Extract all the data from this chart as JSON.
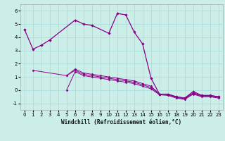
{
  "xlabel": "Windchill (Refroidissement éolien,°C)",
  "background_color": "#cceee8",
  "line_color": "#880088",
  "grid_color": "#aadddd",
  "series1": [
    [
      0,
      4.6
    ],
    [
      1,
      3.1
    ],
    [
      2,
      3.4
    ],
    [
      3,
      3.8
    ],
    [
      6,
      5.3
    ],
    [
      7,
      5.0
    ],
    [
      8,
      4.9
    ],
    [
      10,
      4.3
    ],
    [
      11,
      5.8
    ],
    [
      12,
      5.7
    ],
    [
      13,
      4.4
    ],
    [
      14,
      3.5
    ],
    [
      15,
      0.9
    ],
    [
      16,
      -0.3
    ],
    [
      17,
      -0.3
    ],
    [
      18,
      -0.5
    ],
    [
      19,
      -0.6
    ],
    [
      20,
      -0.1
    ],
    [
      21,
      -0.4
    ],
    [
      22,
      -0.4
    ],
    [
      23,
      -0.5
    ]
  ],
  "series2": [
    [
      1,
      1.5
    ],
    [
      5,
      1.1
    ],
    [
      6,
      1.6
    ],
    [
      7,
      1.3
    ],
    [
      8,
      1.2
    ],
    [
      9,
      1.1
    ],
    [
      10,
      1.0
    ],
    [
      11,
      0.9
    ],
    [
      12,
      0.8
    ],
    [
      13,
      0.7
    ],
    [
      14,
      0.5
    ],
    [
      15,
      0.3
    ],
    [
      16,
      -0.3
    ],
    [
      17,
      -0.3
    ],
    [
      18,
      -0.5
    ],
    [
      19,
      -0.6
    ],
    [
      20,
      -0.2
    ],
    [
      21,
      -0.4
    ],
    [
      22,
      -0.4
    ],
    [
      23,
      -0.5
    ]
  ],
  "series3": [
    [
      5,
      1.1
    ],
    [
      6,
      1.5
    ],
    [
      7,
      1.2
    ],
    [
      8,
      1.1
    ],
    [
      9,
      1.0
    ],
    [
      10,
      0.9
    ],
    [
      11,
      0.8
    ],
    [
      12,
      0.7
    ],
    [
      13,
      0.6
    ],
    [
      14,
      0.4
    ],
    [
      15,
      0.2
    ],
    [
      16,
      -0.3
    ],
    [
      17,
      -0.35
    ],
    [
      18,
      -0.55
    ],
    [
      19,
      -0.65
    ],
    [
      20,
      -0.25
    ],
    [
      21,
      -0.45
    ],
    [
      22,
      -0.45
    ],
    [
      23,
      -0.55
    ]
  ],
  "series4": [
    [
      5,
      0.0
    ],
    [
      6,
      1.4
    ],
    [
      7,
      1.1
    ],
    [
      8,
      1.0
    ],
    [
      9,
      0.9
    ],
    [
      10,
      0.8
    ],
    [
      11,
      0.7
    ],
    [
      12,
      0.6
    ],
    [
      13,
      0.5
    ],
    [
      14,
      0.3
    ],
    [
      15,
      0.1
    ],
    [
      16,
      -0.35
    ],
    [
      17,
      -0.4
    ],
    [
      18,
      -0.6
    ],
    [
      19,
      -0.7
    ],
    [
      20,
      -0.3
    ],
    [
      21,
      -0.5
    ],
    [
      22,
      -0.5
    ],
    [
      23,
      -0.6
    ]
  ],
  "ylim": [
    -1.5,
    6.5
  ],
  "xlim": [
    -0.5,
    23.5
  ],
  "yticks": [
    -1,
    0,
    1,
    2,
    3,
    4,
    5,
    6
  ],
  "xticks": [
    0,
    1,
    2,
    3,
    4,
    5,
    6,
    7,
    8,
    9,
    10,
    11,
    12,
    13,
    14,
    15,
    16,
    17,
    18,
    19,
    20,
    21,
    22,
    23
  ]
}
